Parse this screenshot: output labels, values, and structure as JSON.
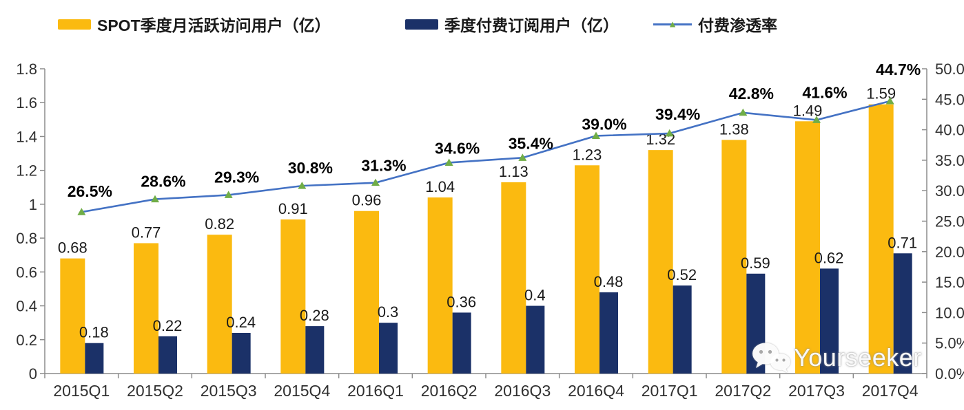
{
  "legend": [
    {
      "label": "SPOT季度月活跃访问用户（亿）",
      "color": "#FBBA10",
      "type": "bar"
    },
    {
      "label": "季度付费订阅用户（亿）",
      "color": "#1B3168",
      "type": "bar"
    },
    {
      "label": "付费渗透率",
      "color": "#4472C4",
      "marker_color": "#70AD47",
      "type": "line"
    }
  ],
  "watermark": {
    "label": "Yourseeker",
    "icon": "wechat-icon"
  },
  "chart_data": {
    "type": "bar+line",
    "title": "",
    "categories": [
      "2015Q1",
      "2015Q2",
      "2015Q3",
      "2015Q4",
      "2016Q1",
      "2016Q2",
      "2016Q3",
      "2016Q4",
      "2017Q1",
      "2017Q2",
      "2017Q3",
      "2017Q4"
    ],
    "series": [
      {
        "name": "SPOT季度月活跃访问用户（亿）",
        "type": "bar",
        "axis": "left",
        "color": "#FBBA10",
        "values": [
          0.68,
          0.77,
          0.82,
          0.91,
          0.96,
          1.04,
          1.13,
          1.23,
          1.32,
          1.38,
          1.49,
          1.59
        ],
        "labels": [
          "0.68",
          "0.77",
          "0.82",
          "0.91",
          "0.96",
          "1.04",
          "1.13",
          "1.23",
          "1.32",
          "1.38",
          "1.49",
          "1.59"
        ]
      },
      {
        "name": "季度付费订阅用户（亿）",
        "type": "bar",
        "axis": "left",
        "color": "#1B3168",
        "values": [
          0.18,
          0.22,
          0.24,
          0.28,
          0.3,
          0.36,
          0.4,
          0.48,
          0.52,
          0.59,
          0.62,
          0.71
        ],
        "labels": [
          "0.18",
          "0.22",
          "0.24",
          "0.28",
          "0.3",
          "0.36",
          "0.4",
          "0.48",
          "0.52",
          "0.59",
          "0.62",
          "0.71"
        ]
      },
      {
        "name": "付费渗透率",
        "type": "line",
        "axis": "right",
        "color": "#4472C4",
        "marker": "triangle",
        "marker_color": "#70AD47",
        "values": [
          26.5,
          28.6,
          29.3,
          30.8,
          31.3,
          34.6,
          35.4,
          39.0,
          39.4,
          42.8,
          41.6,
          44.7
        ],
        "labels": [
          "26.5%",
          "28.6%",
          "29.3%",
          "30.8%",
          "31.3%",
          "34.6%",
          "35.4%",
          "39.0%",
          "39.4%",
          "42.8%",
          "41.6%",
          "44.7%"
        ]
      }
    ],
    "left_axis": {
      "min": 0,
      "max": 1.8,
      "step": 0.2,
      "ticks": [
        "0",
        "0.2",
        "0.4",
        "0.6",
        "0.8",
        "1",
        "1.2",
        "1.4",
        "1.6",
        "1.8"
      ]
    },
    "right_axis": {
      "min": 0,
      "max": 50,
      "step": 5,
      "ticks": [
        "0.0%",
        "5.0%",
        "10.0%",
        "15.0%",
        "20.0%",
        "25.0%",
        "30.0%",
        "35.0%",
        "40.0%",
        "45.0%",
        "50.0%"
      ]
    },
    "grid": false,
    "legend_position": "top",
    "axis_color": "#8C8C8C",
    "tick_label_color": "#303030",
    "data_label_color": "#1a1a1a"
  }
}
